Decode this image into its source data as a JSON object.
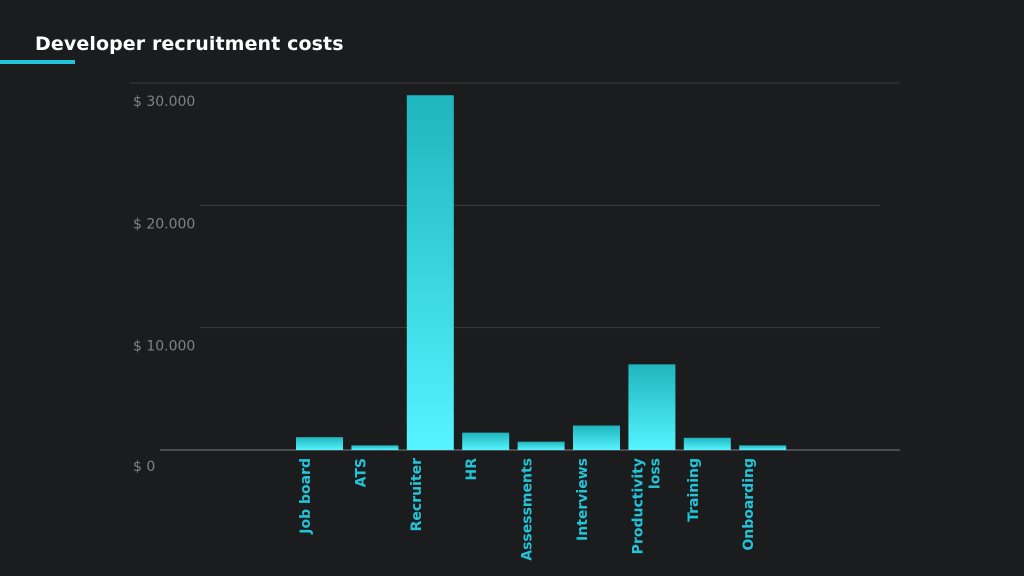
{
  "colors": {
    "background": "#1b1c1d",
    "accent": "#23c3d8",
    "bar_top": "#1fb5be",
    "bar_bottom": "#55f4ff",
    "grid": "#3a3c3e",
    "axis_text": "#7e8285"
  },
  "chart_data": {
    "type": "bar",
    "title": "Developer recruitment costs",
    "xlabel": "",
    "ylabel": "",
    "ylim": [
      0,
      30000
    ],
    "y_ticks": [
      0,
      10000,
      20000,
      30000
    ],
    "y_tick_labels": [
      "$ 0",
      "$ 10.000",
      "$ 20.000",
      "$ 30.000"
    ],
    "grid": true,
    "legend": "none",
    "categories": [
      [
        "Job board"
      ],
      [
        "ATS"
      ],
      [
        "Recruiter"
      ],
      [
        "HR"
      ],
      [
        "Assessments"
      ],
      [
        "Interviews"
      ],
      [
        "Productivity",
        "loss"
      ],
      [
        "Training"
      ],
      [
        "Onboarding"
      ]
    ],
    "values": [
      1050,
      380,
      29000,
      1420,
      680,
      2000,
      7000,
      1000,
      380
    ]
  }
}
